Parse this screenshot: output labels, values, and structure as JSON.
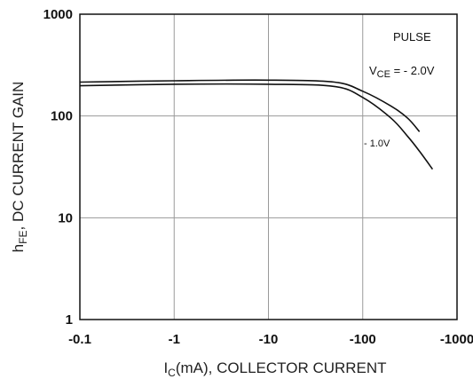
{
  "chart_data": {
    "type": "line",
    "xlabel": {
      "main": "I",
      "sub": "C",
      "rest": "(mA), COLLECTOR CURRENT"
    },
    "ylabel": {
      "main": "h",
      "sub": "FE",
      "rest": ", DC CURRENT GAIN"
    },
    "x_scale": "log",
    "y_scale": "log",
    "xlim": [
      0.1,
      1000
    ],
    "ylim": [
      1,
      1000
    ],
    "x_ticks": [
      0.1,
      1,
      10,
      100,
      1000
    ],
    "x_tick_labels": [
      "-0.1",
      "-1",
      "-10",
      "-100",
      "-1000"
    ],
    "y_ticks": [
      1,
      10,
      100,
      1000
    ],
    "y_tick_labels": [
      "1",
      "10",
      "100",
      "1000"
    ],
    "grid": true,
    "annotations": {
      "pulse": "PULSE",
      "vce_prefix": "V",
      "vce_sub": "CE",
      "vce_value": " = - 2.0V",
      "series2_label": "- 1.0V"
    },
    "series": [
      {
        "name": "VCE = -2.0V",
        "x": [
          0.1,
          1,
          10,
          50,
          100,
          200,
          300,
          400
        ],
        "y": [
          215,
          222,
          225,
          215,
          175,
          125,
          95,
          70
        ]
      },
      {
        "name": "VCE = -1.0V",
        "x": [
          0.1,
          1,
          10,
          50,
          100,
          200,
          300,
          400,
          550
        ],
        "y": [
          198,
          205,
          205,
          195,
          152,
          95,
          63,
          45,
          30
        ]
      }
    ]
  }
}
